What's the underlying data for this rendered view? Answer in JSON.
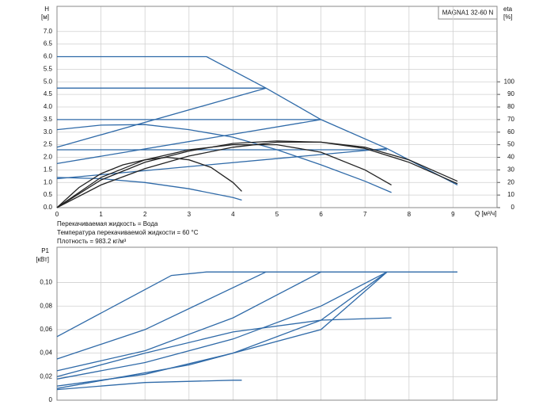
{
  "chart_data": [
    {
      "type": "line",
      "title": "MAGNA1 32-60 N",
      "ylabel": "H",
      "yunit": "[м]",
      "y2label": "eta",
      "y2unit": "[%]",
      "xlabel": "Q [м³/ч]",
      "notes": [
        "Перекачиваемая жидкость = Вода",
        "Температура перекачиваемой жидкости = 60 °C",
        "Плотность = 983.2 кг/м³"
      ],
      "xlim": [
        0,
        10
      ],
      "xticks": [
        0,
        1,
        2,
        3,
        4,
        5,
        6,
        7,
        8,
        9
      ],
      "ylim": [
        0,
        8
      ],
      "yticks": [
        {
          "value": 0,
          "label": "0.0"
        },
        {
          "value": 0.5,
          "label": "0.5"
        },
        {
          "value": 1,
          "label": "1.0"
        },
        {
          "value": 1.5,
          "label": "1.5"
        },
        {
          "value": 2,
          "label": "2.0"
        },
        {
          "value": 2.5,
          "label": "2.5"
        },
        {
          "value": 3,
          "label": "3.0"
        },
        {
          "value": 3.5,
          "label": "3.5"
        },
        {
          "value": 4,
          "label": "4.0"
        },
        {
          "value": 4.5,
          "label": "4.5"
        },
        {
          "value": 5,
          "label": "5.0"
        },
        {
          "value": 5.5,
          "label": "5.5"
        },
        {
          "value": 6,
          "label": "6.0"
        },
        {
          "value": 6.5,
          "label": "6.5"
        },
        {
          "value": 7,
          "label": "7.0"
        }
      ],
      "y2lim": [
        0,
        160
      ],
      "y2ticks": [
        0,
        10,
        20,
        30,
        40,
        50,
        60,
        70,
        80,
        90,
        100
      ],
      "grid": true,
      "series": [
        {
          "color": "#2f6aa8",
          "x": [
            0,
            3.4,
            4.75,
            6,
            7.5,
            9.1
          ],
          "values": [
            6,
            6,
            4.75,
            3.5,
            2.35,
            0.9
          ]
        },
        {
          "color": "#2f6aa8",
          "x": [
            0,
            4.75
          ],
          "values": [
            4.75,
            4.75
          ]
        },
        {
          "color": "#2f6aa8",
          "x": [
            0,
            6
          ],
          "values": [
            3.5,
            3.5
          ]
        },
        {
          "color": "#2f6aa8",
          "x": [
            0,
            7.5
          ],
          "values": [
            2.3,
            2.3
          ]
        },
        {
          "color": "#2f6aa8",
          "x": [
            0,
            4.75
          ],
          "values": [
            2.4,
            4.75
          ]
        },
        {
          "color": "#2f6aa8",
          "x": [
            0,
            6
          ],
          "values": [
            1.75,
            3.5
          ]
        },
        {
          "color": "#2f6aa8",
          "x": [
            0,
            7.5
          ],
          "values": [
            1.15,
            2.35
          ]
        },
        {
          "color": "#2f6aa8",
          "x": [
            0,
            1,
            2,
            3,
            4,
            5,
            6,
            7,
            7.6
          ],
          "values": [
            3.1,
            3.28,
            3.3,
            3.1,
            2.8,
            2.3,
            1.7,
            1.05,
            0.6
          ]
        },
        {
          "color": "#2f6aa8",
          "x": [
            0,
            1,
            2,
            3,
            4,
            4.2
          ],
          "values": [
            1.2,
            1.15,
            1,
            0.75,
            0.4,
            0.3
          ]
        },
        {
          "color": "#222222",
          "axis": "y2",
          "x": [
            0,
            0.5,
            1,
            1.5,
            2,
            2.5,
            3,
            3.5,
            4,
            4.2
          ],
          "values": [
            0,
            16,
            27,
            34,
            38,
            40,
            38,
            32,
            20,
            13
          ]
        },
        {
          "color": "#222222",
          "axis": "y2",
          "x": [
            0,
            1,
            2,
            3,
            4,
            5,
            6,
            7,
            7.6
          ],
          "values": [
            0,
            24,
            38,
            46,
            50,
            50,
            44,
            30,
            18
          ]
        },
        {
          "color": "#222222",
          "axis": "y2",
          "x": [
            0,
            1,
            2,
            3,
            4,
            5,
            6,
            7,
            8,
            9.1
          ],
          "values": [
            0,
            22,
            36,
            45,
            51,
            53,
            52,
            47,
            36,
            19
          ]
        },
        {
          "color": "#222222",
          "axis": "y2",
          "x": [
            0,
            1,
            2,
            3,
            4,
            5,
            6,
            7,
            8,
            9.1
          ],
          "values": [
            0,
            18,
            31,
            41,
            48,
            52,
            52,
            48,
            38,
            21
          ]
        }
      ]
    },
    {
      "type": "line",
      "ylabel": "P1",
      "yunit": "[кВт]",
      "xlim": [
        0,
        10
      ],
      "ylim": [
        0,
        0.13
      ],
      "yticks": [
        0,
        {
          "value": 0.02,
          "label": "0,02"
        },
        {
          "value": 0.04,
          "label": "0,04"
        },
        {
          "value": 0.06,
          "label": "0,06"
        },
        {
          "value": 0.08,
          "label": "0,08"
        },
        {
          "value": 0.1,
          "label": "0,10"
        }
      ],
      "grid": true,
      "series": [
        {
          "color": "#2f6aa8",
          "x": [
            0,
            2.6,
            3.4,
            9.1
          ],
          "values": [
            0.054,
            0.106,
            0.109,
            0.109
          ]
        },
        {
          "color": "#2f6aa8",
          "x": [
            0,
            2,
            4.75
          ],
          "values": [
            0.035,
            0.06,
            0.109
          ]
        },
        {
          "color": "#2f6aa8",
          "x": [
            0,
            2,
            4,
            6
          ],
          "values": [
            0.025,
            0.042,
            0.07,
            0.109
          ]
        },
        {
          "color": "#2f6aa8",
          "x": [
            0,
            2,
            4,
            6,
            7.5
          ],
          "values": [
            0.018,
            0.032,
            0.052,
            0.08,
            0.109
          ]
        },
        {
          "color": "#2f6aa8",
          "x": [
            0,
            2,
            4,
            6,
            7.5
          ],
          "values": [
            0.012,
            0.022,
            0.04,
            0.068,
            0.109
          ]
        },
        {
          "color": "#2f6aa8",
          "x": [
            0,
            2,
            4,
            6,
            7.6
          ],
          "values": [
            0.02,
            0.04,
            0.058,
            0.068,
            0.07
          ]
        },
        {
          "color": "#2f6aa8",
          "x": [
            0,
            2,
            4,
            4.2
          ],
          "values": [
            0.009,
            0.015,
            0.017,
            0.017
          ]
        },
        {
          "color": "#2f6aa8",
          "x": [
            0,
            3,
            6,
            7.5
          ],
          "values": [
            0.01,
            0.03,
            0.06,
            0.109
          ]
        }
      ]
    }
  ]
}
